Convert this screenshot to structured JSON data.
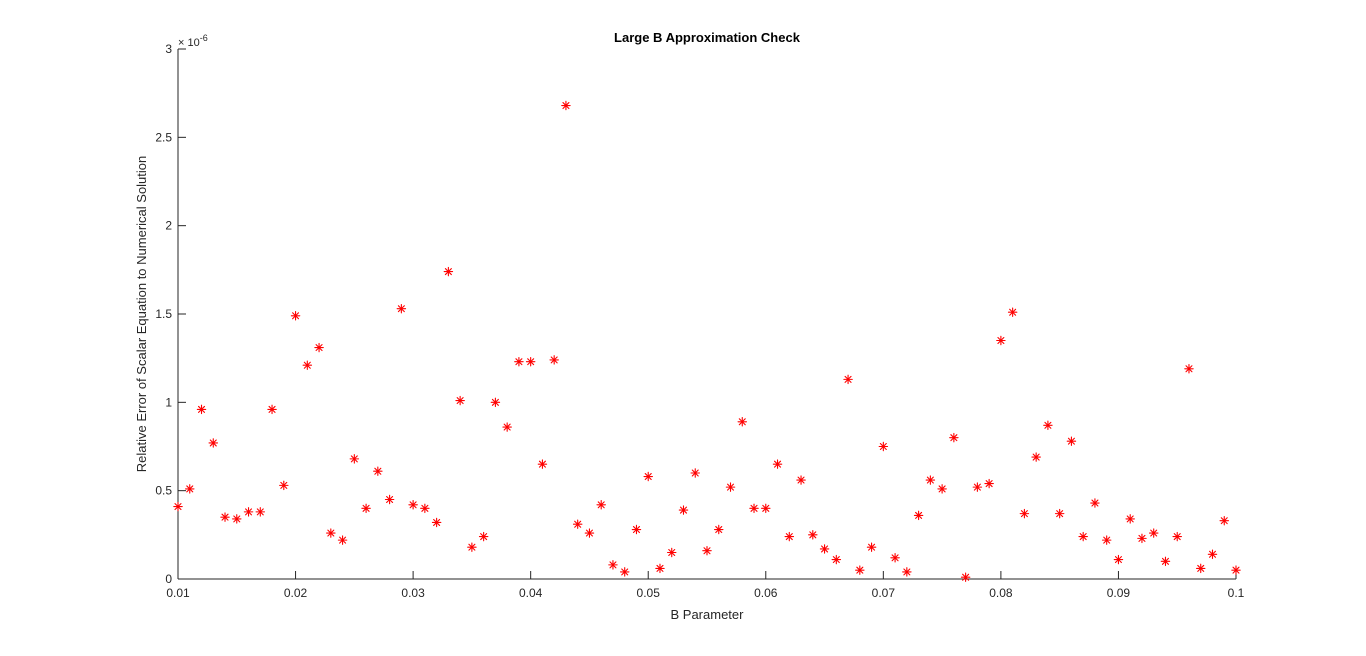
{
  "chart_data": {
    "type": "scatter",
    "title": "Large B Approximation Check",
    "xlabel": "B Parameter",
    "ylabel": "Relative Error of Scalar Equation to Numerical Solution",
    "y_exponent_label": "× 10^-6",
    "y_exponent_prefix": "× 10",
    "y_exponent_power": "-6",
    "xlim": [
      0.01,
      0.1
    ],
    "ylim": [
      0,
      3
    ],
    "grid": false,
    "marker": "*",
    "marker_color": "#ff0000",
    "xticks": [
      "0.01",
      "0.02",
      "0.03",
      "0.04",
      "0.05",
      "0.06",
      "0.07",
      "0.08",
      "0.09",
      "0.1"
    ],
    "yticks": [
      "0",
      "0.5",
      "1",
      "1.5",
      "2",
      "2.5",
      "3"
    ],
    "x": [
      0.01,
      0.011,
      0.012,
      0.013,
      0.014,
      0.015,
      0.016,
      0.017,
      0.018,
      0.019,
      0.02,
      0.021,
      0.022,
      0.023,
      0.024,
      0.025,
      0.026,
      0.027,
      0.028,
      0.029,
      0.03,
      0.031,
      0.032,
      0.033,
      0.034,
      0.035,
      0.036,
      0.037,
      0.038,
      0.039,
      0.04,
      0.041,
      0.042,
      0.043,
      0.044,
      0.045,
      0.046,
      0.047,
      0.048,
      0.049,
      0.05,
      0.051,
      0.052,
      0.053,
      0.054,
      0.055,
      0.056,
      0.057,
      0.058,
      0.059,
      0.06,
      0.061,
      0.062,
      0.063,
      0.064,
      0.065,
      0.066,
      0.067,
      0.068,
      0.069,
      0.07,
      0.071,
      0.072,
      0.073,
      0.074,
      0.075,
      0.076,
      0.077,
      0.078,
      0.079,
      0.08,
      0.081,
      0.082,
      0.083,
      0.084,
      0.085,
      0.086,
      0.087,
      0.088,
      0.089,
      0.09,
      0.091,
      0.092,
      0.093,
      0.094,
      0.095,
      0.096,
      0.097,
      0.098,
      0.099,
      0.1
    ],
    "y": [
      0.41,
      0.51,
      0.96,
      0.77,
      0.35,
      0.34,
      0.38,
      0.38,
      0.96,
      0.53,
      1.49,
      1.21,
      1.31,
      0.26,
      0.22,
      0.68,
      0.4,
      0.61,
      0.45,
      1.53,
      0.42,
      0.4,
      0.32,
      1.74,
      1.01,
      0.18,
      0.24,
      1.0,
      0.86,
      1.23,
      1.23,
      0.65,
      1.24,
      2.68,
      0.31,
      0.26,
      0.42,
      0.08,
      0.04,
      0.28,
      0.58,
      0.06,
      0.15,
      0.39,
      0.6,
      0.16,
      0.28,
      0.52,
      0.89,
      0.4,
      0.4,
      0.65,
      0.24,
      0.56,
      0.25,
      0.17,
      0.11,
      1.13,
      0.05,
      0.18,
      0.75,
      0.12,
      0.04,
      0.36,
      0.56,
      0.51,
      0.8,
      0.01,
      0.52,
      0.54,
      1.35,
      1.51,
      0.37,
      0.69,
      0.87,
      0.37,
      0.78,
      0.24,
      0.43,
      0.22,
      0.11,
      0.34,
      0.23,
      0.26,
      0.1,
      0.24,
      1.19,
      0.06,
      0.14,
      0.33,
      0.05
    ]
  }
}
